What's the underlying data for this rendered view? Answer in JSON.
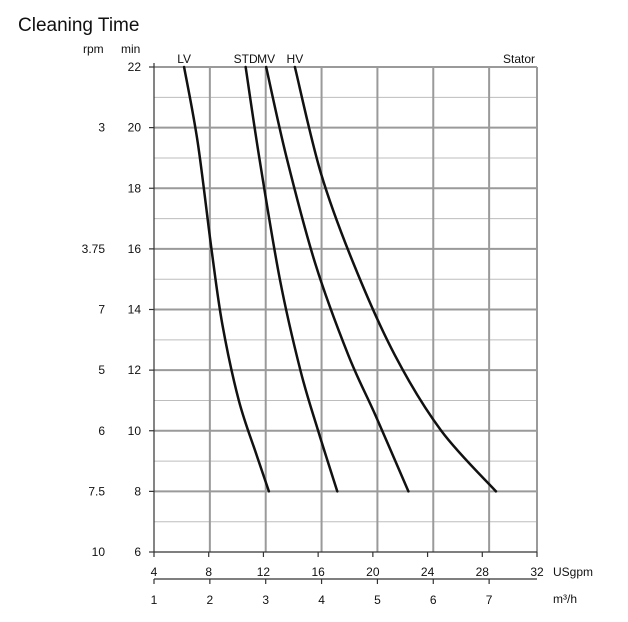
{
  "chart_data": {
    "type": "line",
    "title": "Cleaning Time",
    "left_axis_labels": {
      "rpm": "rpm",
      "min": "min"
    },
    "y_min_ticks": [
      "22",
      "20",
      "18",
      "16",
      "14",
      "12",
      "10",
      "8",
      "6"
    ],
    "y_rpm_ticks": [
      "3",
      "3.75",
      "7",
      "5",
      "6",
      "7.5",
      "10"
    ],
    "ylim": [
      6,
      22
    ],
    "x_usgpm": {
      "label": "USgpm",
      "ticks": [
        "4",
        "8",
        "12",
        "16",
        "20",
        "24",
        "28",
        "32"
      ],
      "range": [
        4,
        32
      ]
    },
    "x_m3h": {
      "label": "m³/h",
      "ticks": [
        "1",
        "2",
        "3",
        "4",
        "5",
        "6",
        "7"
      ]
    },
    "grid": true,
    "series": [
      {
        "name": "LV",
        "x": [
          6.2,
          7.2,
          8.2,
          9.0,
          10.2,
          11.5,
          12.4
        ],
        "y": [
          22,
          19.5,
          16,
          13.5,
          11,
          9.2,
          8
        ]
      },
      {
        "name": "STD",
        "x": [
          10.7,
          11.7,
          13.2,
          14.7,
          16.0,
          17.4
        ],
        "y": [
          22,
          19,
          15,
          12,
          10,
          8
        ]
      },
      {
        "name": "MV",
        "x": [
          12.2,
          13.7,
          15.8,
          18.2,
          20.2,
          22.6
        ],
        "y": [
          22,
          19,
          15.5,
          12.5,
          10.5,
          8
        ]
      },
      {
        "name": "HV",
        "x": [
          14.3,
          16.2,
          18.6,
          21.6,
          25.0,
          29.0
        ],
        "y": [
          22,
          18.5,
          15.5,
          12.5,
          10,
          8
        ]
      },
      {
        "name": "Stator",
        "x": [],
        "y": []
      }
    ]
  }
}
